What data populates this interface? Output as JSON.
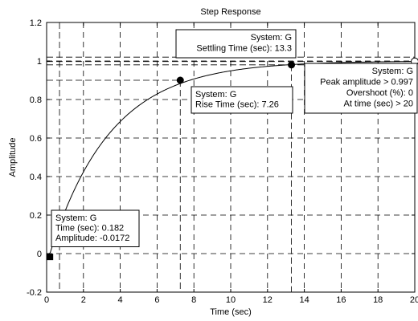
{
  "chart_data": {
    "type": "line",
    "title": "Step Response",
    "xlabel": "Time (sec)",
    "ylabel": "Amplitude",
    "xlim": [
      0,
      20
    ],
    "ylim": [
      -0.2,
      1.2
    ],
    "grid": true,
    "x_ticks": [
      0,
      2,
      4,
      6,
      8,
      10,
      12,
      14,
      16,
      18,
      20
    ],
    "y_ticks": [
      -0.2,
      0,
      0.2,
      0.4,
      0.6,
      0.8,
      1,
      1.2
    ],
    "x_tick_labels": [
      "0",
      "2",
      "4",
      "6",
      "8",
      "10",
      "12",
      "14",
      "16",
      "18",
      "20"
    ],
    "y_tick_labels": [
      "-0.2",
      "0",
      "0.2",
      "0.4",
      "0.6",
      "0.8",
      "1",
      "1.2"
    ],
    "series": [
      {
        "time_constant": 3.3,
        "delay": 0.18,
        "final_value": 1.0
      }
    ],
    "settling_band": [
      0.98,
      1.02
    ],
    "markers": [
      {
        "x": 0.182,
        "y": -0.0172,
        "shape": "square"
      },
      {
        "x": 7.26,
        "y": 0.9,
        "shape": "dot"
      },
      {
        "x": 13.3,
        "y": 0.98,
        "shape": "dot"
      },
      {
        "x": 20,
        "y": 0.997,
        "shape": "open-circle"
      }
    ],
    "datatips": [
      {
        "lines": [
          "System: G",
          "Time (sec): 0.182",
          "Amplitude: -0.0172"
        ],
        "align": "left"
      },
      {
        "lines": [
          "System: G",
          "Rise Time (sec): 7.26"
        ],
        "align": "left"
      },
      {
        "lines": [
          "System: G",
          "Settling Time (sec): 13.3"
        ],
        "align": "right"
      },
      {
        "lines": [
          "System: G",
          "Peak amplitude > 0.997",
          "Overshoot (%): 0",
          "At time (sec) > 20"
        ],
        "align": "right"
      }
    ]
  }
}
